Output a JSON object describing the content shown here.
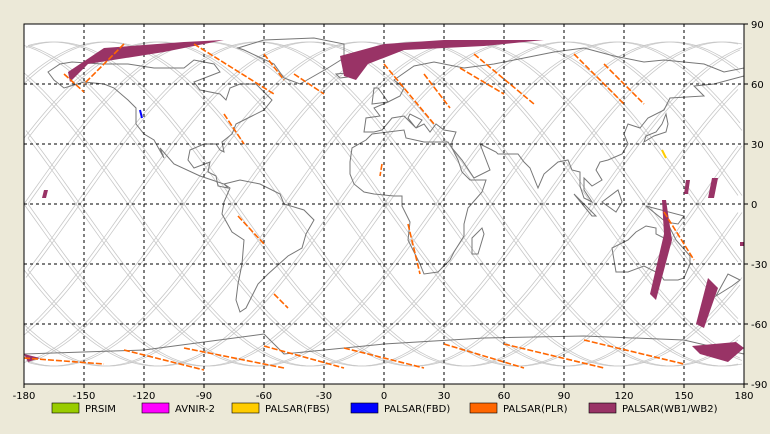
{
  "map": {
    "projection": "equirectangular",
    "lon_range": [
      -180,
      180
    ],
    "lat_range": [
      -90,
      90
    ],
    "x_ticks": [
      {
        "value": -180,
        "label": "-180"
      },
      {
        "value": -150,
        "label": "-150"
      },
      {
        "value": -120,
        "label": "-120"
      },
      {
        "value": -90,
        "label": "-90"
      },
      {
        "value": -60,
        "label": "-60"
      },
      {
        "value": -30,
        "label": "-30"
      },
      {
        "value": 0,
        "label": "0"
      },
      {
        "value": 30,
        "label": "30"
      },
      {
        "value": 60,
        "label": "60"
      },
      {
        "value": 90,
        "label": "90"
      },
      {
        "value": 120,
        "label": "120"
      },
      {
        "value": 150,
        "label": "150"
      },
      {
        "value": 180,
        "label": "180"
      }
    ],
    "y_ticks": [
      {
        "value": 90,
        "label": "90"
      },
      {
        "value": 60,
        "label": "60"
      },
      {
        "value": 30,
        "label": "30"
      },
      {
        "value": 0,
        "label": "0"
      },
      {
        "value": -30,
        "label": "-30"
      },
      {
        "value": -60,
        "label": "-60"
      },
      {
        "value": -90,
        "label": "-90"
      }
    ],
    "grid": "dashed",
    "colors": {
      "background": "#ece9d8",
      "plot_bg": "#ffffff",
      "coast": "#777777",
      "orbit": "#c8c8c8",
      "grid": "#000000"
    }
  },
  "legend": [
    {
      "label": "PRSIM",
      "color": "#99cc00"
    },
    {
      "label": "AVNIR-2",
      "color": "#ff00ff"
    },
    {
      "label": "PALSAR(FBS)",
      "color": "#ffcc00"
    },
    {
      "label": "PALSAR(FBD)",
      "color": "#0000ff"
    },
    {
      "label": "PALSAR(PLR)",
      "color": "#ff6600"
    },
    {
      "label": "PALSAR(WB1/WB2)",
      "color": "#993366"
    }
  ],
  "wb_swaths": [
    [
      [
        -158,
        66
      ],
      [
        -140,
        78
      ],
      [
        -100,
        81
      ],
      [
        -80,
        82
      ],
      [
        -110,
        76
      ],
      [
        -148,
        70
      ],
      [
        -157,
        61
      ]
    ],
    [
      [
        -22,
        74
      ],
      [
        0,
        80
      ],
      [
        30,
        82
      ],
      [
        80,
        82
      ],
      [
        50,
        79
      ],
      [
        10,
        77
      ],
      [
        -8,
        70
      ],
      [
        -14,
        62
      ],
      [
        -20,
        64
      ]
    ],
    [
      [
        -170,
        7
      ],
      [
        -168,
        7
      ],
      [
        -169,
        3
      ],
      [
        -171,
        3
      ]
    ],
    [
      [
        141,
        2
      ],
      [
        144,
        -18
      ],
      [
        136,
        -48
      ],
      [
        133,
        -45
      ],
      [
        140,
        -15
      ],
      [
        139,
        2
      ]
    ],
    [
      [
        162,
        -37
      ],
      [
        167,
        -42
      ],
      [
        160,
        -62
      ],
      [
        156,
        -60
      ]
    ],
    [
      [
        151,
        12
      ],
      [
        153,
        12
      ],
      [
        152,
        5
      ],
      [
        150,
        5
      ]
    ],
    [
      [
        164,
        13
      ],
      [
        167,
        13
      ],
      [
        165,
        3
      ],
      [
        162,
        3
      ]
    ],
    [
      [
        -180,
        -75
      ],
      [
        -172,
        -77
      ],
      [
        -178,
        -79
      ]
    ],
    [
      [
        154,
        -71
      ],
      [
        176,
        -69
      ],
      [
        180,
        -72
      ],
      [
        172,
        -79
      ],
      [
        158,
        -75
      ]
    ],
    [
      [
        178,
        -19
      ],
      [
        180,
        -19
      ],
      [
        180,
        -21
      ],
      [
        178,
        -21
      ]
    ]
  ],
  "plr_tracks": [
    [
      [
        -160,
        65
      ],
      [
        -150,
        56
      ]
    ],
    [
      [
        -95,
        80
      ],
      [
        -55,
        55
      ]
    ],
    [
      [
        -60,
        75
      ],
      [
        -50,
        62
      ]
    ],
    [
      [
        -130,
        80
      ],
      [
        -150,
        60
      ]
    ],
    [
      [
        -45,
        65
      ],
      [
        -30,
        55
      ]
    ],
    [
      [
        0,
        70
      ],
      [
        25,
        40
      ]
    ],
    [
      [
        20,
        65
      ],
      [
        33,
        48
      ]
    ],
    [
      [
        45,
        75
      ],
      [
        75,
        50
      ]
    ],
    [
      [
        38,
        68
      ],
      [
        60,
        55
      ]
    ],
    [
      [
        95,
        75
      ],
      [
        120,
        50
      ]
    ],
    [
      [
        110,
        70
      ],
      [
        130,
        50
      ]
    ],
    [
      [
        -55,
        -45
      ],
      [
        -48,
        -52
      ]
    ],
    [
      [
        -73,
        -6
      ],
      [
        -60,
        -20
      ]
    ],
    [
      [
        -1,
        20
      ],
      [
        -2,
        14
      ]
    ],
    [
      [
        -130,
        -73
      ],
      [
        -90,
        -83
      ]
    ],
    [
      [
        -100,
        -72
      ],
      [
        -50,
        -82
      ]
    ],
    [
      [
        -60,
        -71
      ],
      [
        -20,
        -82
      ]
    ],
    [
      [
        -20,
        -72
      ],
      [
        20,
        -82
      ]
    ],
    [
      [
        30,
        -70
      ],
      [
        70,
        -82
      ]
    ],
    [
      [
        60,
        -70
      ],
      [
        110,
        -82
      ]
    ],
    [
      [
        100,
        -68
      ],
      [
        150,
        -80
      ]
    ],
    [
      [
        -180,
        -77
      ],
      [
        -140,
        -80
      ]
    ],
    [
      [
        140,
        -4
      ],
      [
        155,
        -28
      ]
    ],
    [
      [
        12,
        -10
      ],
      [
        18,
        -35
      ]
    ],
    [
      [
        -80,
        45
      ],
      [
        -70,
        30
      ]
    ]
  ],
  "fbd_tracks": [
    [
      [
        -122,
        47
      ],
      [
        -121,
        43
      ]
    ]
  ],
  "fbs_tracks": [
    [
      [
        139,
        27
      ],
      [
        141,
        23
      ]
    ]
  ],
  "land": [
    [
      [
        -168,
        66
      ],
      [
        -162,
        70
      ],
      [
        -156,
        71
      ],
      [
        -141,
        70
      ],
      [
        -128,
        70
      ],
      [
        -115,
        68
      ],
      [
        -100,
        68
      ],
      [
        -95,
        72
      ],
      [
        -85,
        70
      ],
      [
        -82,
        66
      ],
      [
        -95,
        61
      ],
      [
        -92,
        57
      ],
      [
        -82,
        55
      ],
      [
        -79,
        52
      ],
      [
        -77,
        58
      ],
      [
        -72,
        60
      ],
      [
        -64,
        60
      ],
      [
        -56,
        52
      ],
      [
        -60,
        47
      ],
      [
        -66,
        44
      ],
      [
        -70,
        42
      ],
      [
        -74,
        40
      ],
      [
        -76,
        35
      ],
      [
        -81,
        31
      ],
      [
        -80,
        26
      ],
      [
        -82,
        27
      ],
      [
        -84,
        30
      ],
      [
        -90,
        30
      ],
      [
        -97,
        27
      ],
      [
        -98,
        22
      ],
      [
        -95,
        18
      ],
      [
        -87,
        21
      ],
      [
        -88,
        16
      ],
      [
        -84,
        14
      ],
      [
        -83,
        9
      ],
      [
        -78,
        8
      ],
      [
        -80,
        10
      ],
      [
        -86,
        12
      ],
      [
        -92,
        14
      ],
      [
        -105,
        20
      ],
      [
        -112,
        28
      ],
      [
        -110,
        23
      ],
      [
        -115,
        32
      ],
      [
        -120,
        35
      ],
      [
        -124,
        40
      ],
      [
        -124,
        48
      ],
      [
        -128,
        52
      ],
      [
        -135,
        58
      ],
      [
        -140,
        60
      ],
      [
        -150,
        61
      ],
      [
        -160,
        58
      ],
      [
        -165,
        62
      ],
      [
        -168,
        66
      ]
    ],
    [
      [
        -73,
        78
      ],
      [
        -60,
        82
      ],
      [
        -35,
        83
      ],
      [
        -20,
        80
      ],
      [
        -20,
        73
      ],
      [
        -28,
        68
      ],
      [
        -42,
        60
      ],
      [
        -50,
        63
      ],
      [
        -55,
        70
      ],
      [
        -70,
        77
      ],
      [
        -73,
        78
      ]
    ],
    [
      [
        -80,
        10
      ],
      [
        -72,
        12
      ],
      [
        -62,
        10
      ],
      [
        -52,
        5
      ],
      [
        -50,
        0
      ],
      [
        -40,
        -3
      ],
      [
        -35,
        -8
      ],
      [
        -39,
        -15
      ],
      [
        -41,
        -22
      ],
      [
        -48,
        -26
      ],
      [
        -58,
        -35
      ],
      [
        -63,
        -40
      ],
      [
        -66,
        -46
      ],
      [
        -69,
        -52
      ],
      [
        -72,
        -54
      ],
      [
        -74,
        -48
      ],
      [
        -73,
        -40
      ],
      [
        -71,
        -30
      ],
      [
        -70,
        -18
      ],
      [
        -76,
        -14
      ],
      [
        -81,
        -5
      ],
      [
        -80,
        1
      ],
      [
        -77,
        8
      ],
      [
        -80,
        10
      ]
    ],
    [
      [
        -10,
        36
      ],
      [
        -9,
        43
      ],
      [
        -2,
        44
      ],
      [
        -5,
        48
      ],
      [
        2,
        51
      ],
      [
        8,
        54
      ],
      [
        10,
        58
      ],
      [
        5,
        62
      ],
      [
        15,
        69
      ],
      [
        25,
        71
      ],
      [
        40,
        68
      ],
      [
        55,
        70
      ],
      [
        70,
        73
      ],
      [
        85,
        76
      ],
      [
        100,
        78
      ],
      [
        115,
        74
      ],
      [
        130,
        71
      ],
      [
        140,
        72
      ],
      [
        160,
        70
      ],
      [
        170,
        66
      ],
      [
        180,
        68
      ],
      [
        180,
        64
      ],
      [
        165,
        60
      ],
      [
        155,
        59
      ],
      [
        160,
        54
      ],
      [
        143,
        53
      ],
      [
        140,
        47
      ],
      [
        132,
        43
      ],
      [
        128,
        38
      ],
      [
        122,
        40
      ],
      [
        120,
        35
      ],
      [
        122,
        30
      ],
      [
        119,
        25
      ],
      [
        112,
        22
      ],
      [
        108,
        21
      ],
      [
        106,
        17
      ],
      [
        109,
        12
      ],
      [
        104,
        9
      ],
      [
        100,
        13
      ],
      [
        100,
        7
      ],
      [
        104,
        1
      ],
      [
        100,
        3
      ],
      [
        98,
        9
      ],
      [
        98,
        16
      ],
      [
        94,
        17
      ],
      [
        92,
        22
      ],
      [
        87,
        21
      ],
      [
        80,
        15
      ],
      [
        77,
        8
      ],
      [
        73,
        18
      ],
      [
        70,
        21
      ],
      [
        67,
        25
      ],
      [
        57,
        25
      ],
      [
        56,
        26
      ],
      [
        52,
        28
      ],
      [
        48,
        30
      ],
      [
        53,
        17
      ],
      [
        45,
        13
      ],
      [
        43,
        16
      ],
      [
        39,
        22
      ],
      [
        34,
        28
      ],
      [
        34,
        31
      ],
      [
        36,
        36
      ],
      [
        30,
        37
      ],
      [
        26,
        40
      ],
      [
        23,
        36
      ],
      [
        20,
        40
      ],
      [
        16,
        38
      ],
      [
        19,
        42
      ],
      [
        13,
        45
      ],
      [
        12,
        43
      ],
      [
        16,
        38
      ],
      [
        10,
        44
      ],
      [
        4,
        43
      ],
      [
        -1,
        37
      ],
      [
        -5,
        36
      ],
      [
        -10,
        36
      ]
    ],
    [
      [
        -17,
        21
      ],
      [
        -16,
        28
      ],
      [
        -9,
        32
      ],
      [
        -6,
        35
      ],
      [
        10,
        37
      ],
      [
        11,
        33
      ],
      [
        20,
        31
      ],
      [
        32,
        31
      ],
      [
        34,
        28
      ],
      [
        37,
        22
      ],
      [
        39,
        16
      ],
      [
        43,
        12
      ],
      [
        51,
        12
      ],
      [
        49,
        6
      ],
      [
        42,
        -2
      ],
      [
        40,
        -10
      ],
      [
        40,
        -16
      ],
      [
        35,
        -24
      ],
      [
        33,
        -28
      ],
      [
        27,
        -34
      ],
      [
        20,
        -35
      ],
      [
        18,
        -30
      ],
      [
        12,
        -18
      ],
      [
        13,
        -9
      ],
      [
        9,
        -1
      ],
      [
        9,
        4
      ],
      [
        5,
        4
      ],
      [
        -5,
        5
      ],
      [
        -10,
        6
      ],
      [
        -15,
        10
      ],
      [
        -17,
        15
      ],
      [
        -17,
        21
      ]
    ],
    [
      [
        114,
        -22
      ],
      [
        116,
        -34
      ],
      [
        122,
        -34
      ],
      [
        130,
        -31
      ],
      [
        138,
        -35
      ],
      [
        140,
        -38
      ],
      [
        147,
        -38
      ],
      [
        150,
        -37
      ],
      [
        153,
        -30
      ],
      [
        153,
        -26
      ],
      [
        146,
        -18
      ],
      [
        144,
        -14
      ],
      [
        142,
        -10
      ],
      [
        140,
        -17
      ],
      [
        136,
        -15
      ],
      [
        136,
        -12
      ],
      [
        131,
        -11
      ],
      [
        126,
        -14
      ],
      [
        122,
        -18
      ],
      [
        114,
        -22
      ]
    ],
    [
      [
        44,
        -25
      ],
      [
        47,
        -25
      ],
      [
        50,
        -15
      ],
      [
        49,
        -12
      ],
      [
        44,
        -17
      ],
      [
        44,
        -25
      ]
    ],
    [
      [
        -6,
        50
      ],
      [
        2,
        51
      ],
      [
        0,
        54
      ],
      [
        -3,
        58
      ],
      [
        -5,
        58
      ],
      [
        -6,
        50
      ]
    ],
    [
      [
        130,
        31
      ],
      [
        135,
        34
      ],
      [
        141,
        36
      ],
      [
        142,
        40
      ],
      [
        141,
        45
      ],
      [
        139,
        40
      ],
      [
        136,
        36
      ],
      [
        131,
        34
      ],
      [
        130,
        31
      ]
    ],
    [
      [
        95,
        5
      ],
      [
        106,
        -6
      ],
      [
        104,
        -6
      ],
      [
        95,
        5
      ]
    ],
    [
      [
        109,
        1
      ],
      [
        117,
        7
      ],
      [
        119,
        1
      ],
      [
        116,
        -4
      ],
      [
        109,
        1
      ]
    ],
    [
      [
        131,
        -1
      ],
      [
        150,
        -6
      ],
      [
        147,
        -10
      ],
      [
        141,
        -9
      ],
      [
        131,
        -1
      ]
    ],
    [
      [
        166,
        -46
      ],
      [
        174,
        -41
      ],
      [
        178,
        -38
      ],
      [
        172,
        -35
      ],
      [
        166,
        -46
      ]
    ],
    [
      [
        -24,
        65
      ],
      [
        -14,
        66
      ],
      [
        -14,
        64
      ],
      [
        -22,
        63
      ],
      [
        -24,
        65
      ]
    ],
    [
      [
        -180,
        -75
      ],
      [
        -120,
        -73
      ],
      [
        -60,
        -65
      ],
      [
        -50,
        -75
      ],
      [
        0,
        -70
      ],
      [
        50,
        -67
      ],
      [
        100,
        -66
      ],
      [
        150,
        -68
      ],
      [
        180,
        -75
      ],
      [
        180,
        -90
      ],
      [
        -180,
        -90
      ],
      [
        -180,
        -75
      ]
    ]
  ]
}
